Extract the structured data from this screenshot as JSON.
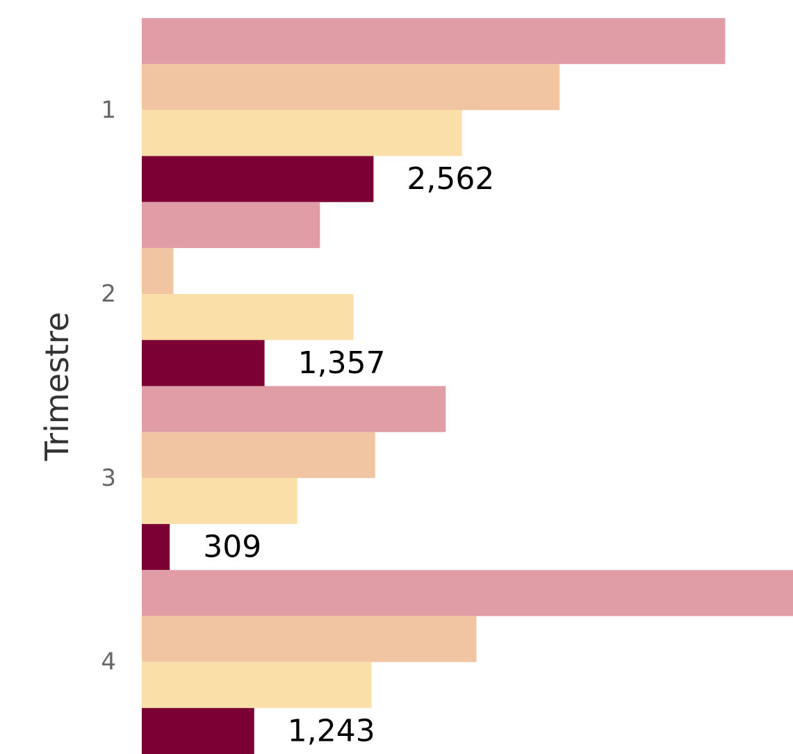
{
  "chart_data": {
    "type": "bar",
    "orientation": "horizontal",
    "categories": [
      "1",
      "2",
      "3",
      "4"
    ],
    "ylabel": "Trimestre",
    "xlim": [
      0,
      7200
    ],
    "grid": false,
    "series": [
      {
        "values": [
          6450,
          1970,
          3360,
          7200
        ],
        "color": "#e19da6"
      },
      {
        "values": [
          4620,
          350,
          2580,
          3700
        ],
        "color": "#f1c4a2"
      },
      {
        "values": [
          3540,
          2340,
          1720,
          2540
        ],
        "color": "#fae0a8"
      },
      {
        "values": [
          2562,
          1357,
          309,
          1243
        ],
        "color": "#7b0033",
        "data_labels": [
          "2,562",
          "1,357",
          "309",
          "1,243"
        ]
      }
    ]
  }
}
